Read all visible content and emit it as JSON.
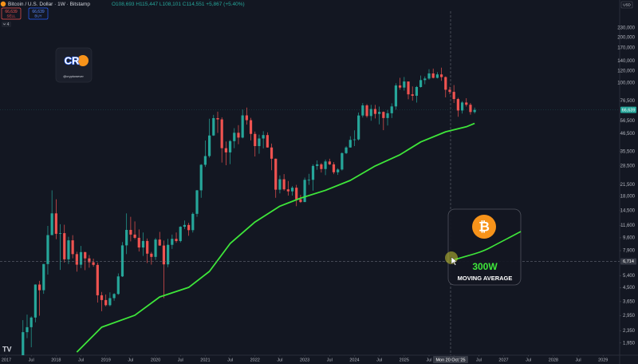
{
  "chart_data": {
    "type": "candlestick",
    "title": "Bitcoin / U.S. Dollar · 1W · Bitstamp",
    "legend_values": "O108,693 H115,447 L108,101 C114,551 +5,867 (+5.40%)",
    "currency": "USD",
    "log_scale": true,
    "grid": false,
    "up_color": "#26a69a",
    "down_color": "#ef5350",
    "xlim": [
      "2016-11-15",
      "2029-05-01"
    ],
    "ylim": [
      1622,
      283000
    ],
    "x": [
      "2017-05",
      "2017-06",
      "2017-07",
      "2017-08",
      "2017-09",
      "2017-10",
      "2017-11",
      "2017-12",
      "2018-01",
      "2018-02",
      "2018-03",
      "2018-04",
      "2018-05",
      "2018-06",
      "2018-07",
      "2018-08",
      "2018-09",
      "2018-10",
      "2018-11",
      "2018-12",
      "2019-01",
      "2019-02",
      "2019-03",
      "2019-04",
      "2019-05",
      "2019-06",
      "2019-07",
      "2019-08",
      "2019-09",
      "2019-10",
      "2019-11",
      "2019-12",
      "2020-01",
      "2020-02",
      "2020-03",
      "2020-04",
      "2020-05",
      "2020-06",
      "2020-07",
      "2020-08",
      "2020-09",
      "2020-10",
      "2020-11",
      "2020-12",
      "2021-01",
      "2021-02",
      "2021-03",
      "2021-04",
      "2021-05",
      "2021-06",
      "2021-07",
      "2021-08",
      "2021-09",
      "2021-10",
      "2021-11",
      "2021-12",
      "2022-01",
      "2022-02",
      "2022-03",
      "2022-04",
      "2022-05",
      "2022-06",
      "2022-07",
      "2022-08",
      "2022-09",
      "2022-10",
      "2022-11",
      "2022-12",
      "2023-01",
      "2023-02",
      "2023-03",
      "2023-04",
      "2023-05",
      "2023-06",
      "2023-07",
      "2023-08",
      "2023-09",
      "2023-10",
      "2023-11",
      "2023-12",
      "2024-01",
      "2024-02",
      "2024-03",
      "2024-04",
      "2024-05",
      "2024-06",
      "2024-07",
      "2024-08",
      "2024-09",
      "2024-10",
      "2024-11",
      "2024-12",
      "2025-01",
      "2025-02",
      "2025-03",
      "2025-04",
      "2025-05",
      "2025-06",
      "2025-07",
      "2025-08",
      "2025-09",
      "2025-10",
      "2025-11",
      "2025-12",
      "2026-01",
      "2026-02",
      "2026-03",
      "2026-04",
      "2026-05",
      "2026-06"
    ],
    "open": [
      1350,
      2300,
      2480,
      2870,
      4730,
      4340,
      6450,
      10000,
      13900,
      10200,
      10300,
      6930,
      9240,
      7500,
      6390,
      7730,
      7030,
      6630,
      6370,
      4020,
      3740,
      3460,
      3850,
      4100,
      5350,
      8560,
      10820,
      10080,
      9600,
      8290,
      9150,
      7550,
      7190,
      9350,
      8540,
      6420,
      8630,
      9450,
      9140,
      11350,
      11660,
      10780,
      13800,
      19700,
      29000,
      33100,
      45200,
      58800,
      57700,
      37300,
      35000,
      41500,
      47100,
      43800,
      61300,
      57000,
      46300,
      38500,
      43200,
      45500,
      37700,
      31800,
      19900,
      23300,
      20000,
      19400,
      20500,
      17200,
      16500,
      23100,
      23100,
      28500,
      29200,
      27200,
      30500,
      29200,
      25900,
      27000,
      34600,
      37700,
      42300,
      42600,
      61200,
      71300,
      60700,
      67500,
      62700,
      64600,
      58900,
      63300,
      70200,
      96400,
      93400,
      102400,
      84300,
      82500,
      94200,
      104600,
      107100,
      115700,
      108200,
      114000,
      109500,
      90400,
      87500,
      78500,
      66000,
      74500,
      72000,
      64500
    ],
    "high": [
      2760,
      3000,
      2920,
      4740,
      5000,
      6470,
      11500,
      19700,
      17200,
      11800,
      11700,
      9750,
      9990,
      7770,
      8480,
      7760,
      7400,
      7000,
      6600,
      4230,
      4070,
      4200,
      4150,
      5600,
      9000,
      13900,
      13200,
      12300,
      10900,
      10400,
      9500,
      7750,
      9580,
      10500,
      9200,
      9450,
      10080,
      10400,
      11450,
      12470,
      12050,
      14100,
      19800,
      29300,
      41900,
      58300,
      61800,
      64900,
      59500,
      41300,
      42200,
      50500,
      52900,
      67000,
      69000,
      59100,
      48000,
      45800,
      48200,
      47400,
      40000,
      31900,
      24700,
      25200,
      22700,
      21000,
      21400,
      18400,
      23900,
      25300,
      29200,
      31000,
      29800,
      31400,
      31800,
      30200,
      27500,
      35000,
      38400,
      44700,
      48900,
      64000,
      73800,
      72800,
      71900,
      71900,
      70000,
      65100,
      66500,
      73600,
      99600,
      108300,
      109600,
      102500,
      95000,
      95700,
      112000,
      110600,
      123200,
      124500,
      117900,
      126200,
      110600,
      94500,
      97000,
      80000,
      76000,
      79500,
      74000,
      69000
    ],
    "low": [
      1350,
      2100,
      1830,
      2670,
      2950,
      4110,
      5500,
      10000,
      9400,
      5900,
      6600,
      6450,
      7030,
      5750,
      6070,
      5880,
      6100,
      6200,
      3600,
      3160,
      3400,
      3400,
      3700,
      4050,
      5300,
      7500,
      9100,
      9400,
      7800,
      7300,
      6550,
      6400,
      6870,
      8500,
      3850,
      6150,
      8110,
      8900,
      8950,
      10970,
      9900,
      10400,
      13200,
      17600,
      28100,
      32300,
      44900,
      47000,
      30000,
      28800,
      29300,
      37300,
      39600,
      43300,
      53300,
      42000,
      32900,
      34300,
      37200,
      37600,
      26700,
      17600,
      18800,
      19600,
      18200,
      18200,
      15500,
      16300,
      16500,
      21400,
      19600,
      26900,
      25800,
      24800,
      28900,
      25200,
      24900,
      26600,
      34100,
      37600,
      38500,
      41900,
      59300,
      59200,
      56500,
      58500,
      53500,
      49000,
      52600,
      58900,
      66800,
      90500,
      89200,
      78200,
      76600,
      74400,
      93400,
      98200,
      105200,
      107300,
      107300,
      103500,
      80500,
      84500,
      74000,
      60000,
      63000,
      70000,
      62000,
      63000
    ],
    "close": [
      2300,
      2480,
      2870,
      4730,
      4340,
      6450,
      10000,
      13900,
      10200,
      10300,
      6930,
      9240,
      7500,
      6390,
      7730,
      7030,
      6630,
      6370,
      4020,
      3740,
      3460,
      3850,
      4100,
      5350,
      8560,
      10820,
      10080,
      9600,
      8290,
      9150,
      7550,
      7190,
      9350,
      8540,
      6420,
      8630,
      9450,
      9140,
      11350,
      11660,
      10780,
      13800,
      19700,
      29000,
      33100,
      45200,
      58800,
      57700,
      37300,
      35000,
      41500,
      47100,
      43800,
      61300,
      57000,
      46300,
      38500,
      43200,
      45500,
      37700,
      31800,
      19900,
      23300,
      20000,
      19400,
      20500,
      17200,
      16500,
      23100,
      23100,
      28500,
      29200,
      27200,
      30500,
      29200,
      25900,
      27000,
      34600,
      37700,
      42300,
      42600,
      61200,
      71300,
      60700,
      67500,
      62700,
      64600,
      58900,
      63300,
      70200,
      96400,
      93400,
      102400,
      84300,
      82500,
      94200,
      104600,
      107100,
      115700,
      108200,
      114000,
      109500,
      90400,
      87500,
      78500,
      66000,
      74500,
      72000,
      64500,
      66639
    ],
    "moving_average": {
      "color": "#3ee63a",
      "x": [
        "2018-06",
        "2018-12",
        "2019-08",
        "2020-02",
        "2020-09",
        "2021-02",
        "2021-07",
        "2022-01",
        "2022-07",
        "2022-12",
        "2023-06",
        "2023-12",
        "2024-06",
        "2024-12",
        "2025-05",
        "2025-11",
        "2026-04",
        "2026-06"
      ],
      "values": [
        1700,
        2480,
        2970,
        3920,
        4530,
        5770,
        8800,
        12200,
        15500,
        17500,
        19700,
        22900,
        28500,
        33800,
        41000,
        47800,
        51600,
        54300
      ]
    },
    "yticks": [
      {
        "value": 230000,
        "label": "230,000"
      },
      {
        "value": 200000,
        "label": "200,000"
      },
      {
        "value": 170000,
        "label": "170,000"
      },
      {
        "value": 140000,
        "label": "140,000"
      },
      {
        "value": 120000,
        "label": "120,000"
      },
      {
        "value": 100000,
        "label": "100,000"
      },
      {
        "value": 76500,
        "label": "76,500"
      },
      {
        "value": 56500,
        "label": "56,500"
      },
      {
        "value": 46500,
        "label": "46,500"
      },
      {
        "value": 35500,
        "label": "35,500"
      },
      {
        "value": 28500,
        "label": "28,500"
      },
      {
        "value": 21500,
        "label": "21,500"
      },
      {
        "value": 18000,
        "label": "18,000"
      },
      {
        "value": 14500,
        "label": "14,500"
      },
      {
        "value": 11600,
        "label": "11,600"
      },
      {
        "value": 9600,
        "label": "9,600"
      },
      {
        "value": 7900,
        "label": "7,900"
      },
      {
        "value": 5400,
        "label": "5,400"
      },
      {
        "value": 4500,
        "label": "4,500"
      },
      {
        "value": 3650,
        "label": "3,650"
      },
      {
        "value": 2950,
        "label": "2,950"
      },
      {
        "value": 2350,
        "label": "2,350"
      },
      {
        "value": 1950,
        "label": "1,950"
      }
    ],
    "xticks": [
      {
        "value": "2017-01",
        "label": "2017"
      },
      {
        "value": "2017-07",
        "label": "Jul"
      },
      {
        "value": "2018-01",
        "label": "2018"
      },
      {
        "value": "2018-07",
        "label": "Jul"
      },
      {
        "value": "2019-01",
        "label": "2019"
      },
      {
        "value": "2019-07",
        "label": "Jul"
      },
      {
        "value": "2020-01",
        "label": "2020"
      },
      {
        "value": "2020-07",
        "label": "Jul"
      },
      {
        "value": "2021-01",
        "label": "2021"
      },
      {
        "value": "2021-07",
        "label": "Jul"
      },
      {
        "value": "2022-01",
        "label": "2022"
      },
      {
        "value": "2022-07",
        "label": "Jul"
      },
      {
        "value": "2023-01",
        "label": "2023"
      },
      {
        "value": "2023-07",
        "label": "Jul"
      },
      {
        "value": "2024-01",
        "label": "2024"
      },
      {
        "value": "2024-07",
        "label": "Jul"
      },
      {
        "value": "2025-01",
        "label": "2025"
      },
      {
        "value": "2025-07",
        "label": "Jul"
      },
      {
        "value": "2026-01",
        "label": "2026"
      },
      {
        "value": "2026-07",
        "label": "Jul"
      },
      {
        "value": "2027-01",
        "label": "2027"
      },
      {
        "value": "2027-07",
        "label": "Jul"
      },
      {
        "value": "2028-01",
        "label": "2028"
      },
      {
        "value": "2028-07",
        "label": "Jul"
      },
      {
        "value": "2029-01",
        "label": "2029"
      }
    ],
    "last_price": {
      "value": 66639,
      "label": "66,639"
    },
    "crosshair": {
      "x_label": "Mon 20 Oct '25",
      "y": {
        "value": 6714,
        "label": "6,714"
      }
    }
  },
  "trade_panel": {
    "sell_price": "66,639",
    "sell": "SELL",
    "buy_price": "66,639",
    "buy": "BUY",
    "indicator_count": "4"
  },
  "logo": {
    "mark": "CR",
    "handle": "@cryptowever"
  },
  "card": {
    "title": "300W",
    "subtitle": "MOVING AVERAGE"
  }
}
